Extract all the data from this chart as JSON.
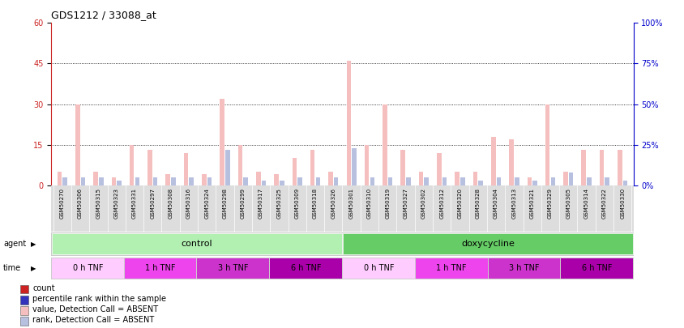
{
  "title": "GDS1212 / 33088_at",
  "samples": [
    "GSM50270",
    "GSM50306",
    "GSM50315",
    "GSM50323",
    "GSM50331",
    "GSM50297",
    "GSM50308",
    "GSM50316",
    "GSM50324",
    "GSM50298",
    "GSM50299",
    "GSM50317",
    "GSM50325",
    "GSM50309",
    "GSM50318",
    "GSM50326",
    "GSM50301",
    "GSM50310",
    "GSM50319",
    "GSM50327",
    "GSM50302",
    "GSM50312",
    "GSM50320",
    "GSM50328",
    "GSM50304",
    "GSM50313",
    "GSM50321",
    "GSM50329",
    "GSM50305",
    "GSM50314",
    "GSM50322",
    "GSM50330"
  ],
  "values": [
    5,
    30,
    5,
    3,
    15,
    13,
    4,
    12,
    4,
    32,
    15,
    5,
    4,
    10,
    13,
    5,
    46,
    15,
    30,
    13,
    5,
    12,
    5,
    5,
    18,
    17,
    3,
    30,
    5,
    13,
    13,
    13
  ],
  "ranks_pct": [
    5,
    5,
    5,
    3,
    5,
    5,
    5,
    5,
    5,
    22,
    5,
    3,
    3,
    5,
    5,
    5,
    23,
    5,
    5,
    5,
    5,
    5,
    5,
    3,
    5,
    5,
    3,
    5,
    8,
    5,
    5,
    3
  ],
  "ylim_left": [
    0,
    60
  ],
  "ylim_right": [
    0,
    100
  ],
  "yticks_left": [
    0,
    15,
    30,
    45,
    60
  ],
  "yticks_right": [
    0,
    25,
    50,
    75,
    100
  ],
  "val_color": "#f5bfbf",
  "rank_color": "#b8c0e0",
  "agent_ctrl_color": "#b2f0b2",
  "agent_doxy_color": "#66cc66",
  "time_colors": [
    "#ffccff",
    "#ee44ee",
    "#cc33cc",
    "#aa00aa"
  ],
  "time_labels": [
    "0 h TNF",
    "1 h TNF",
    "3 h TNF",
    "6 h TNF"
  ],
  "time_group_sizes_ctrl": [
    4,
    4,
    4,
    4
  ],
  "time_group_sizes_doxy": [
    4,
    4,
    4,
    4
  ],
  "legend_items": [
    {
      "color": "#cc2222",
      "label": "count"
    },
    {
      "color": "#3333bb",
      "label": "percentile rank within the sample"
    },
    {
      "color": "#f5bfbf",
      "label": "value, Detection Call = ABSENT"
    },
    {
      "color": "#b8c0e0",
      "label": "rank, Detection Call = ABSENT"
    }
  ],
  "bg_color": "#ffffff",
  "tick_left_color": "#cc2222",
  "tick_right_color": "#0000cc",
  "xtick_bg_color": "#dddddd",
  "title_fontsize": 9,
  "sample_fontsize": 5.0
}
